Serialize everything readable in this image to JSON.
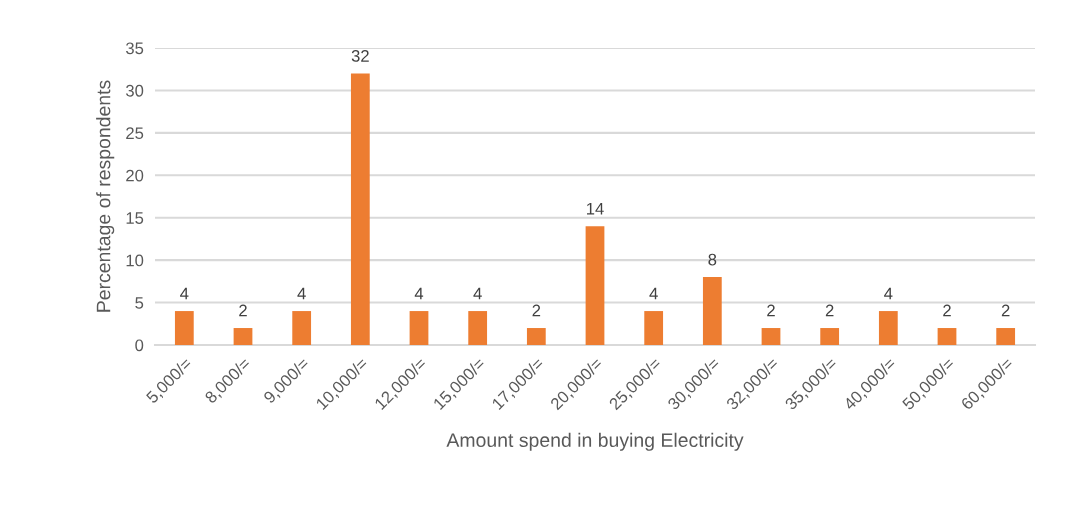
{
  "chart_data": {
    "type": "bar",
    "xlabel": "Amount spend in buying Electricity",
    "ylabel": "Percentage of respondents",
    "categories": [
      "5,000/=",
      "8,000/=",
      "9,000/=",
      "10,000/=",
      "12,000/=",
      "15,000/=",
      "17,000/=",
      "20,000/=",
      "25,000/=",
      "30,000/=",
      "32,000/=",
      "35,000/=",
      "40,000/=",
      "50,000/=",
      "60,000/="
    ],
    "values": [
      4,
      2,
      4,
      32,
      4,
      4,
      2,
      14,
      4,
      8,
      2,
      2,
      4,
      2,
      2
    ],
    "color": "#ed7d31",
    "ylim": [
      0,
      35
    ],
    "yticks": [
      0,
      5,
      10,
      15,
      20,
      25,
      30,
      35
    ],
    "grid": "y",
    "data_labels": true,
    "legend": false
  }
}
